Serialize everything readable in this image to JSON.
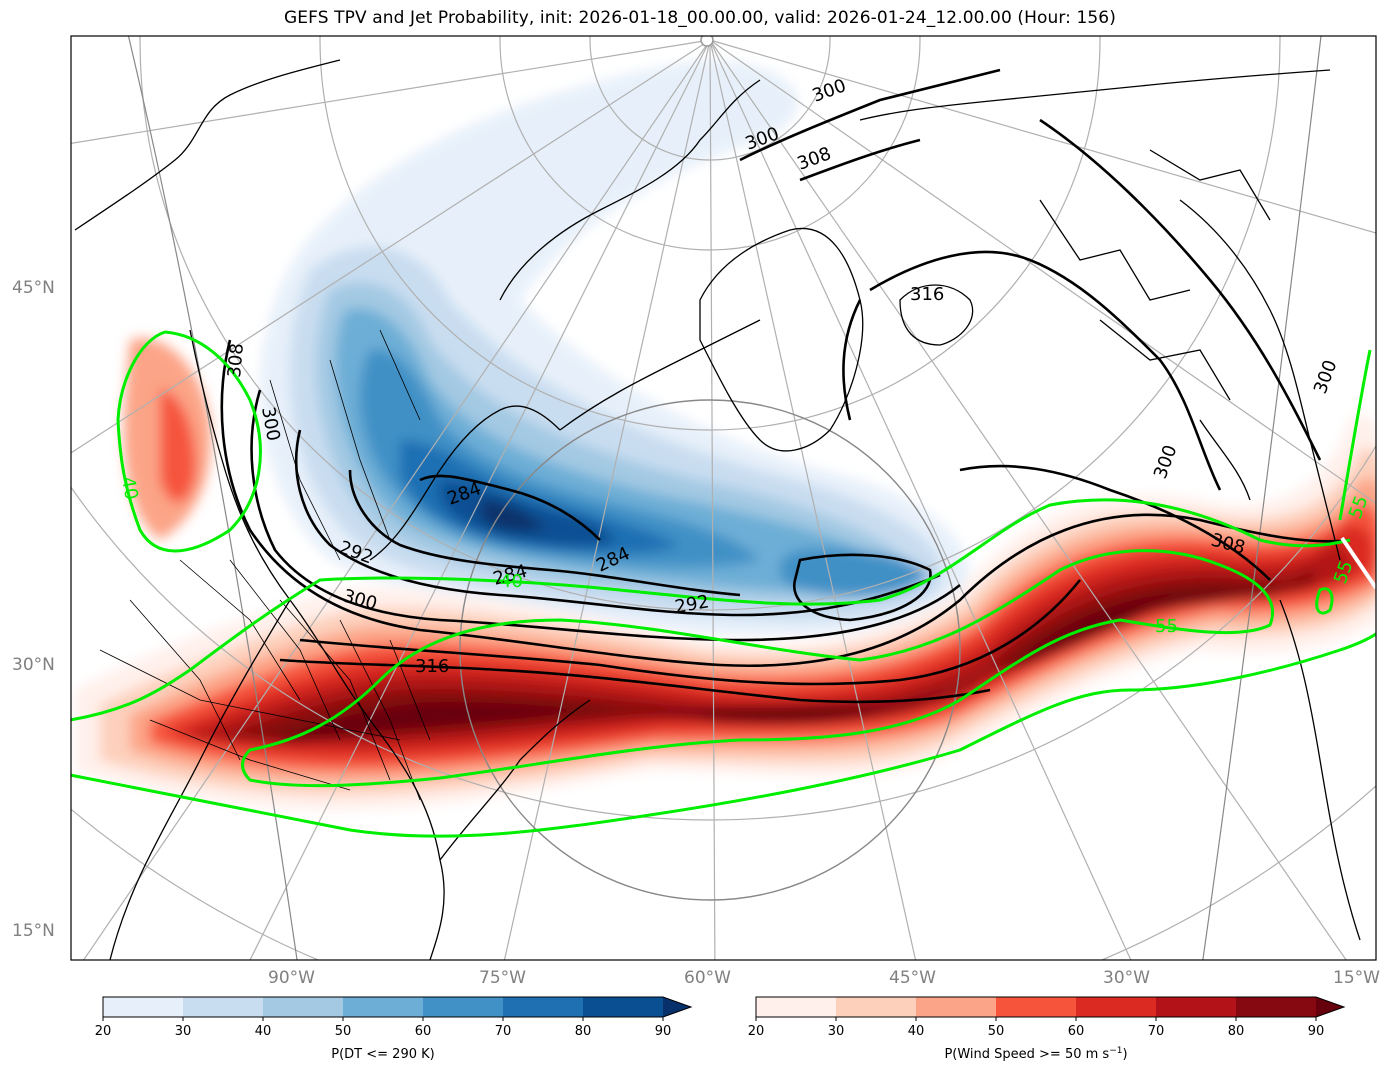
{
  "title": "GEFS TPV and Jet Probability, init: 2026-01-18_00.00.00, valid: 2026-01-24_12.00.00 (Hour: 156)",
  "lat_labels": [
    "45°N",
    "30°N",
    "15°N"
  ],
  "lon_labels": [
    "90°W",
    "75°W",
    "60°W",
    "45°W",
    "30°W",
    "15°W"
  ],
  "colorbars": {
    "blue": {
      "label": "P(DT <= 290 K)",
      "ticks": [
        "20",
        "30",
        "40",
        "50",
        "60",
        "70",
        "80",
        "90"
      ],
      "colors": [
        "#e7f0fa",
        "#c9ddf0",
        "#a3c9e3",
        "#6daed6",
        "#4190c6",
        "#1f6fb3",
        "#0b4f93"
      ],
      "extend_color": "#08306b"
    },
    "red": {
      "label": "P(Wind Speed >= 50 m s",
      "label_sup": "−1",
      "label_end": ")",
      "ticks": [
        "20",
        "30",
        "40",
        "50",
        "60",
        "70",
        "80",
        "90"
      ],
      "colors": [
        "#fff0eb",
        "#fdd0bc",
        "#fca487",
        "#f6553c",
        "#db2a22",
        "#b21218",
        "#860811"
      ],
      "extend_color": "#67000d"
    }
  },
  "contour_labels": {
    "black": [
      "300",
      "300",
      "308",
      "316",
      "308",
      "300",
      "284",
      "284",
      "284",
      "292",
      "300",
      "292",
      "316",
      "300",
      "308",
      "300"
    ],
    "green": [
      "40",
      "40",
      "55",
      "55",
      "55"
    ]
  },
  "colors": {
    "contour": "#000000",
    "jet_contour": "#00ee00",
    "grid": "#b0b0b0"
  }
}
